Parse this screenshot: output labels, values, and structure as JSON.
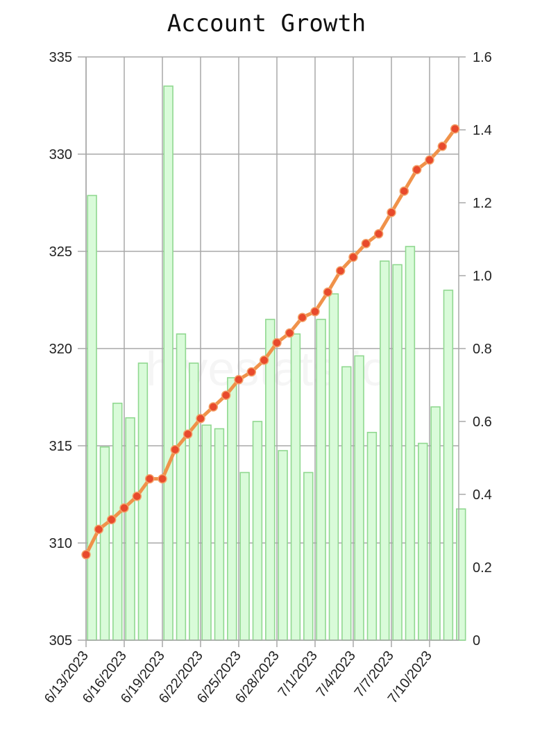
{
  "chart_data": {
    "type": "bar+line",
    "title": "Account Growth",
    "watermark": "hivestats.io",
    "dates": [
      "6/13/2023",
      "6/14/2023",
      "6/15/2023",
      "6/16/2023",
      "6/17/2023",
      "6/18/2023",
      "6/19/2023",
      "6/20/2023",
      "6/21/2023",
      "6/22/2023",
      "6/23/2023",
      "6/24/2023",
      "6/25/2023",
      "6/26/2023",
      "6/27/2023",
      "6/28/2023",
      "6/29/2023",
      "6/30/2023",
      "7/1/2023",
      "7/2/2023",
      "7/3/2023",
      "7/4/2023",
      "7/5/2023",
      "7/6/2023",
      "7/7/2023",
      "7/8/2023",
      "7/9/2023",
      "7/10/2023",
      "7/11/2023",
      "7/12/2023"
    ],
    "x_tick_labels": [
      "6/13/2023",
      "6/16/2023",
      "6/19/2023",
      "6/22/2023",
      "6/25/2023",
      "6/28/2023",
      "7/1/2023",
      "7/4/2023",
      "7/7/2023",
      "7/10/2023"
    ],
    "x_tick_step": 3,
    "left_axis": {
      "min": 305,
      "max": 335,
      "ticks": [
        305,
        310,
        315,
        320,
        325,
        330,
        335
      ]
    },
    "right_axis": {
      "min": 0,
      "max": 1.6,
      "ticks": [
        "0",
        "0.2",
        "0.4",
        "0.6",
        "0.8",
        "1.0",
        "1.2",
        "1.4",
        "1.6"
      ]
    },
    "series": [
      {
        "kind": "bar",
        "axis": "right",
        "color": "#90d890",
        "fill": "#d9fbd9",
        "values": [
          1.22,
          0.53,
          0.65,
          0.61,
          0.76,
          null,
          1.52,
          0.84,
          0.76,
          0.59,
          0.58,
          0.72,
          0.46,
          0.6,
          0.88,
          0.52,
          0.84,
          0.46,
          0.88,
          0.95,
          0.75,
          0.78,
          0.57,
          1.04,
          1.03,
          1.08,
          0.54,
          0.64,
          0.96,
          0.36
        ]
      },
      {
        "kind": "line",
        "axis": "left",
        "color": "#f0924a",
        "marker_color": "#e84a2c",
        "values": [
          309.4,
          310.7,
          311.2,
          311.8,
          312.4,
          313.3,
          313.3,
          314.8,
          315.6,
          316.4,
          317.0,
          317.6,
          318.4,
          318.8,
          319.4,
          320.3,
          320.8,
          321.6,
          321.9,
          322.9,
          324.0,
          324.7,
          325.4,
          325.9,
          327.0,
          328.1,
          329.2,
          329.7,
          330.4,
          331.3
        ]
      }
    ],
    "grid": true,
    "legend": "none"
  }
}
